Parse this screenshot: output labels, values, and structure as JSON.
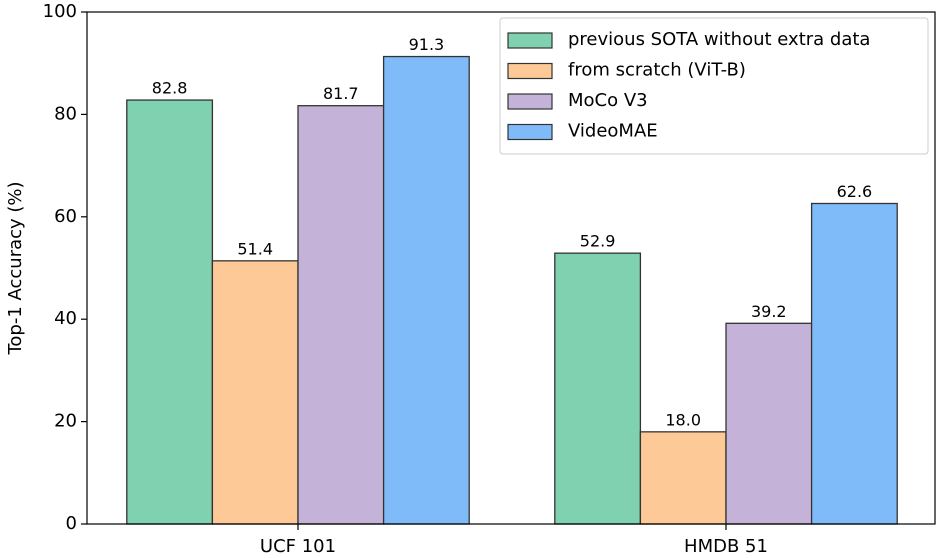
{
  "chart_data": {
    "type": "bar",
    "y_label": "Top-1 Accuracy (%)",
    "categories": [
      "UCF 101",
      "HMDB 51"
    ],
    "series": [
      {
        "name": "previous SOTA without extra data",
        "color": "#7fd1b0",
        "values": [
          82.8,
          52.9
        ]
      },
      {
        "name": "from scratch (ViT-B)",
        "color": "#fdc996",
        "values": [
          51.4,
          18.0
        ],
        "value_labels": [
          "51.4",
          "18.0"
        ]
      },
      {
        "name": "MoCo V3",
        "color": "#c4b2d9",
        "values": [
          81.7,
          39.2
        ]
      },
      {
        "name": "VideoMAE",
        "color": "#80bbf9",
        "values": [
          91.3,
          62.6
        ]
      }
    ],
    "ylim": [
      0,
      100
    ],
    "yticks": [
      0,
      20,
      40,
      60,
      80,
      100
    ],
    "legend": "upper right"
  }
}
